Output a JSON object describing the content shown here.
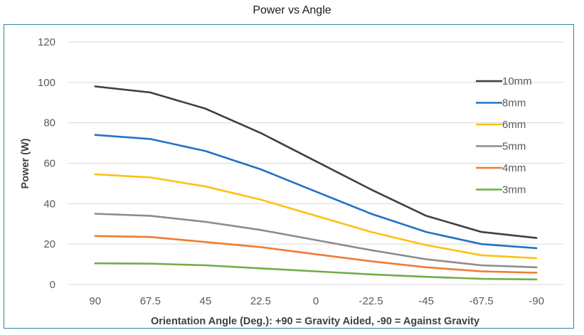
{
  "chart_data": {
    "type": "line",
    "title": "Power vs Angle",
    "xlabel": "Orientation Angle (Deg.): +90 = Gravity Aided, -90 = Against Gravity",
    "ylabel": "Power (W)",
    "categories": [
      "90",
      "67.5",
      "45",
      "22.5",
      "0",
      "-22.5",
      "-45",
      "-67.5",
      "-90"
    ],
    "ylim": [
      0,
      120
    ],
    "yticks": [
      0,
      20,
      40,
      60,
      80,
      100,
      120
    ],
    "grid": true,
    "legend_position": "right",
    "series": [
      {
        "name": "10mm",
        "color": "#404040",
        "values": [
          98,
          95,
          87,
          75,
          61,
          47,
          34,
          26,
          23
        ]
      },
      {
        "name": "8mm",
        "color": "#2372c6",
        "values": [
          74,
          72,
          66,
          57,
          46,
          35,
          26,
          20,
          18
        ]
      },
      {
        "name": "6mm",
        "color": "#fbc213",
        "values": [
          54.5,
          53,
          48.5,
          42,
          34,
          26,
          19.5,
          14.5,
          13
        ]
      },
      {
        "name": "5mm",
        "color": "#8c8c8c",
        "values": [
          35,
          34,
          31,
          27,
          22,
          17,
          12.5,
          9.5,
          8.5
        ]
      },
      {
        "name": "4mm",
        "color": "#ed7d31",
        "values": [
          24,
          23.5,
          21,
          18.5,
          15,
          11.5,
          8.5,
          6.5,
          5.8
        ]
      },
      {
        "name": "3mm",
        "color": "#70ad47",
        "values": [
          10.5,
          10.3,
          9.5,
          8,
          6.5,
          5,
          3.8,
          2.8,
          2.5
        ]
      }
    ]
  }
}
